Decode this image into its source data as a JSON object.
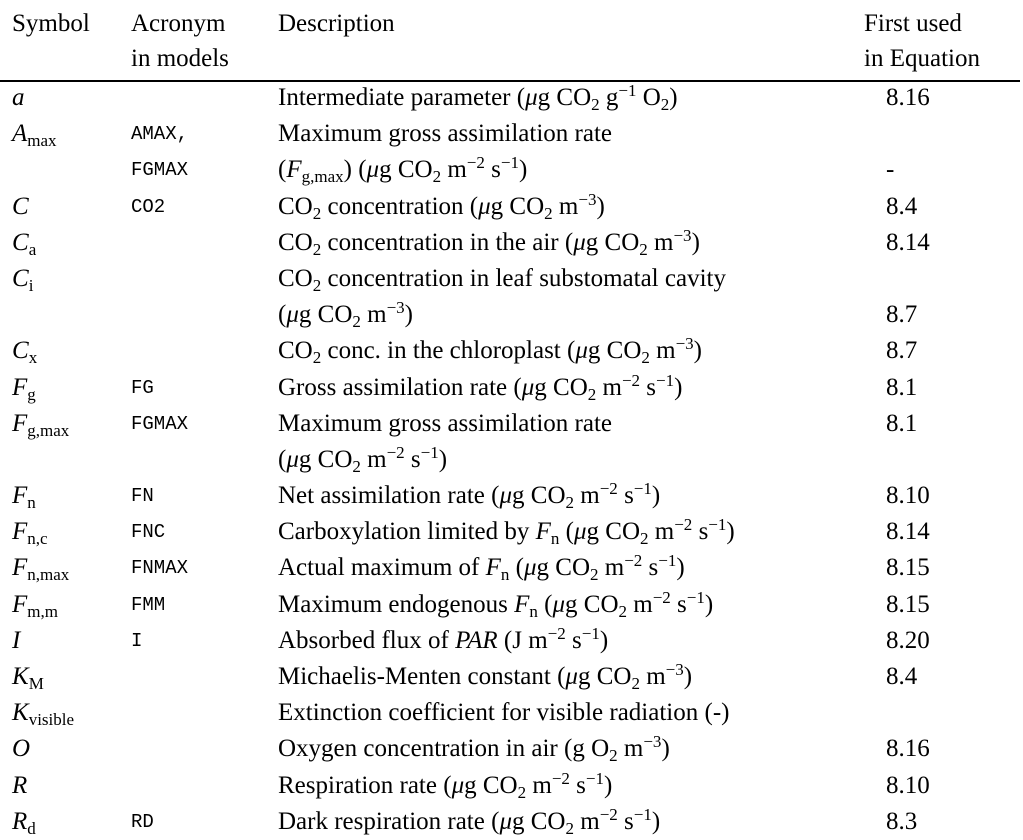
{
  "header": {
    "symbol": "Symbol",
    "acronym_l1": "Acronym",
    "acronym_l2": "in models",
    "description": "Description",
    "eq_l1": "First used",
    "eq_l2": "in Equation"
  },
  "rows": [
    {
      "symbol": "a",
      "acronym": "",
      "description": "Intermediate parameter (μg CO2 g−1 O2)",
      "equation": "8.16"
    },
    {
      "symbol": "Amax",
      "acronym": "AMAX,",
      "description": "Maximum gross assimilation rate",
      "equation": ""
    },
    {
      "symbol": "",
      "acronym": "FGMAX",
      "description": "(Fg,max) (μg CO2 m−2 s−1)",
      "equation": "-"
    },
    {
      "symbol": "C",
      "acronym": "CO2",
      "description": "CO2 concentration (μg CO2 m−3)",
      "equation": "8.4"
    },
    {
      "symbol": "Ca",
      "acronym": "",
      "description": "CO2 concentration in the air (μg CO2 m−3)",
      "equation": "8.14"
    },
    {
      "symbol": "Ci",
      "acronym": "",
      "description": "CO2 concentration in leaf substomatal cavity",
      "equation": ""
    },
    {
      "symbol": "",
      "acronym": "",
      "description": "(μg CO2 m−3)",
      "equation": "8.7"
    },
    {
      "symbol": "Cx",
      "acronym": "",
      "description": "CO2 conc. in the chloroplast (μg CO2 m−3)",
      "equation": "8.7"
    },
    {
      "symbol": "Fg",
      "acronym": "FG",
      "description": "Gross assimilation rate (μg CO2 m−2 s−1)",
      "equation": "8.1"
    },
    {
      "symbol": "Fg,max",
      "acronym": "FGMAX",
      "description": "Maximum gross assimilation rate",
      "equation": "8.1"
    },
    {
      "symbol": "",
      "acronym": "",
      "description": "(μg CO2 m−2 s−1)",
      "equation": ""
    },
    {
      "symbol": "Fn",
      "acronym": "FN",
      "description": "Net assimilation rate (μg CO2 m−2 s−1)",
      "equation": "8.10"
    },
    {
      "symbol": "Fn,c",
      "acronym": "FNC",
      "description": "Carboxylation limited by Fn (μg CO2 m−2 s−1)",
      "equation": "8.14"
    },
    {
      "symbol": "Fn,max",
      "acronym": "FNMAX",
      "description": "Actual maximum of Fn (μg CO2 m−2 s−1)",
      "equation": "8.15"
    },
    {
      "symbol": "Fm,m",
      "acronym": "FMM",
      "description": "Maximum endogenous Fn (μg CO2 m−2 s−1)",
      "equation": "8.15"
    },
    {
      "symbol": "I",
      "acronym": "I",
      "description": "Absorbed flux of PAR (J m−2 s−1)",
      "equation": "8.20"
    },
    {
      "symbol": "KM",
      "acronym": "",
      "description": "Michaelis-Menten constant (μg CO2 m−3)",
      "equation": "8.4"
    },
    {
      "symbol": "Kvisible",
      "acronym": "",
      "description": "Extinction coefficient for visible radiation (-)",
      "equation": ""
    },
    {
      "symbol": "O",
      "acronym": "",
      "description": "Oxygen concentration in air (g O2 m−3)",
      "equation": "8.16"
    },
    {
      "symbol": "R",
      "acronym": "",
      "description": "Respiration rate (μg CO2 m−2 s−1)",
      "equation": "8.10"
    },
    {
      "symbol": "Rd",
      "acronym": "RD",
      "description": "Dark respiration rate (μg CO2 m−2 s−1)",
      "equation": "8.3"
    }
  ]
}
